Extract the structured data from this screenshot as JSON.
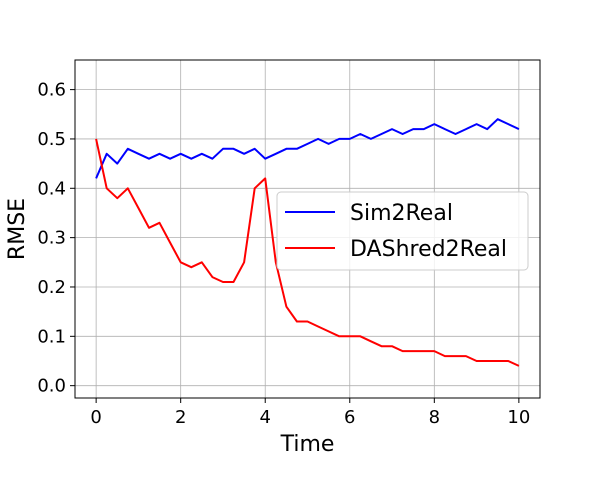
{
  "chart_data": {
    "type": "line",
    "title": "",
    "xlabel": "Time",
    "ylabel": "RMSE",
    "xlim": [
      -0.5,
      10.5
    ],
    "ylim": [
      -0.025,
      0.66
    ],
    "xticks": [
      0,
      2,
      4,
      6,
      8,
      10
    ],
    "xtick_labels": [
      "0",
      "2",
      "4",
      "6",
      "8",
      "10"
    ],
    "yticks": [
      0.0,
      0.1,
      0.2,
      0.3,
      0.4,
      0.5,
      0.6
    ],
    "ytick_labels": [
      "0.0",
      "0.1",
      "0.2",
      "0.3",
      "0.4",
      "0.5",
      "0.6"
    ],
    "grid": true,
    "legend_position": "center-right",
    "series": [
      {
        "name": "Sim2Real",
        "color": "#0000ff",
        "x": [
          0.0,
          0.25,
          0.5,
          0.75,
          1.0,
          1.25,
          1.5,
          1.75,
          2.0,
          2.25,
          2.5,
          2.75,
          3.0,
          3.25,
          3.5,
          3.75,
          4.0,
          4.25,
          4.5,
          4.75,
          5.0,
          5.25,
          5.5,
          5.75,
          6.0,
          6.25,
          6.5,
          6.75,
          7.0,
          7.25,
          7.5,
          7.75,
          8.0,
          8.25,
          8.5,
          8.75,
          9.0,
          9.25,
          9.5,
          9.75,
          10.0
        ],
        "y": [
          0.42,
          0.47,
          0.45,
          0.48,
          0.47,
          0.46,
          0.47,
          0.46,
          0.47,
          0.46,
          0.47,
          0.46,
          0.48,
          0.48,
          0.47,
          0.48,
          0.46,
          0.47,
          0.48,
          0.48,
          0.49,
          0.5,
          0.49,
          0.5,
          0.5,
          0.51,
          0.5,
          0.51,
          0.52,
          0.51,
          0.52,
          0.52,
          0.53,
          0.52,
          0.51,
          0.52,
          0.53,
          0.52,
          0.54,
          0.53,
          0.52
        ]
      },
      {
        "name": "DAShred2Real",
        "color": "#ff0000",
        "x": [
          0.0,
          0.25,
          0.5,
          0.75,
          1.0,
          1.25,
          1.5,
          1.75,
          2.0,
          2.25,
          2.5,
          2.75,
          3.0,
          3.25,
          3.5,
          3.75,
          4.0,
          4.25,
          4.5,
          4.75,
          5.0,
          5.25,
          5.5,
          5.75,
          6.0,
          6.25,
          6.5,
          6.75,
          7.0,
          7.25,
          7.5,
          7.75,
          8.0,
          8.25,
          8.5,
          8.75,
          9.0,
          9.25,
          9.5,
          9.75,
          10.0
        ],
        "y": [
          0.5,
          0.4,
          0.38,
          0.4,
          0.36,
          0.32,
          0.33,
          0.29,
          0.25,
          0.24,
          0.25,
          0.22,
          0.21,
          0.21,
          0.25,
          0.4,
          0.42,
          0.25,
          0.16,
          0.13,
          0.13,
          0.12,
          0.11,
          0.1,
          0.1,
          0.1,
          0.09,
          0.08,
          0.08,
          0.07,
          0.07,
          0.07,
          0.07,
          0.06,
          0.06,
          0.06,
          0.05,
          0.05,
          0.05,
          0.05,
          0.04
        ]
      }
    ]
  }
}
